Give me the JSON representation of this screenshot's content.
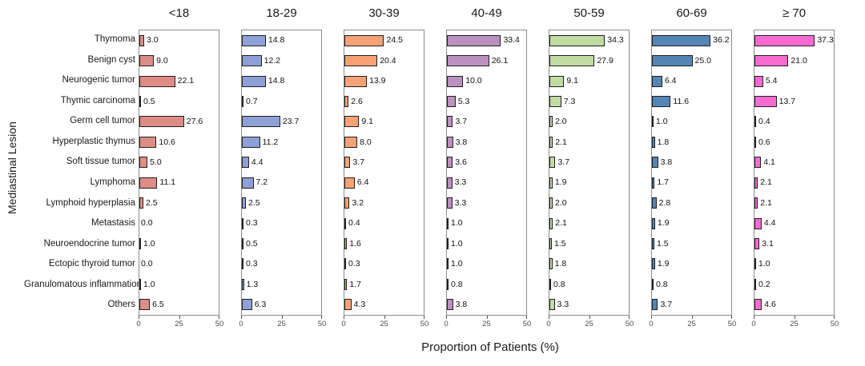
{
  "chart_data": {
    "type": "bar",
    "orientation": "horizontal",
    "xlabel": "Proportion of Patients (%)",
    "ylabel": "Mediastinal Lesion",
    "xlim": [
      0,
      50
    ],
    "x_ticks": [
      0,
      25,
      50
    ],
    "grid": false,
    "legend": "none (panel titles act as series labels)",
    "categories": [
      "Thymoma",
      "Benign cyst",
      "Neurogenic tumor",
      "Thymic carcinoma",
      "Germ cell tumor",
      "Hyperplastic thymus",
      "Soft tissue tumor",
      "Lymphoma",
      "Lymphoid hyperplasia",
      "Metastasis",
      "Neuroendocrine tumor",
      "Ectopic thyroid tumor",
      "Granulomatous inflammation",
      "Others"
    ],
    "series": [
      {
        "name": "<18",
        "color": "#DE8C86",
        "values": [
          3.0,
          9.0,
          22.1,
          0.5,
          27.6,
          10.6,
          5.0,
          11.1,
          2.5,
          0.0,
          1.0,
          0.0,
          1.0,
          6.5
        ]
      },
      {
        "name": "18-29",
        "color": "#8FA0D7",
        "values": [
          14.8,
          12.2,
          14.8,
          0.7,
          23.7,
          11.2,
          4.4,
          7.2,
          2.5,
          0.3,
          0.5,
          0.3,
          1.3,
          6.3
        ]
      },
      {
        "name": "30-39",
        "color": "#F5A376",
        "values": [
          24.5,
          20.4,
          13.9,
          2.6,
          9.1,
          8.0,
          3.7,
          6.4,
          3.2,
          0.4,
          1.6,
          0.3,
          1.7,
          4.3
        ]
      },
      {
        "name": "40-49",
        "color": "#BC90BF",
        "values": [
          33.4,
          26.1,
          10.0,
          5.3,
          3.7,
          3.8,
          3.6,
          3.3,
          3.3,
          1.0,
          1.0,
          1.0,
          0.8,
          3.8
        ]
      },
      {
        "name": "50-59",
        "color": "#C0DCA3",
        "values": [
          34.3,
          27.9,
          9.1,
          7.3,
          2.0,
          2.1,
          3.7,
          1.9,
          2.0,
          2.1,
          1.5,
          1.8,
          0.8,
          3.3
        ]
      },
      {
        "name": "60-69",
        "color": "#5585B5",
        "values": [
          36.2,
          25.0,
          6.4,
          11.6,
          1.0,
          1.8,
          3.8,
          1.7,
          2.8,
          1.9,
          1.5,
          1.9,
          0.8,
          3.7
        ]
      },
      {
        "name": "≥ 70",
        "color": "#FA6BD1",
        "values": [
          37.3,
          21.0,
          5.4,
          13.7,
          0.4,
          0.6,
          4.1,
          2.1,
          2.1,
          4.4,
          3.1,
          1.0,
          0.2,
          4.6
        ]
      }
    ],
    "bar_edge_color": "#1f1f1f",
    "panel_border_color": "#8c8c8c"
  }
}
